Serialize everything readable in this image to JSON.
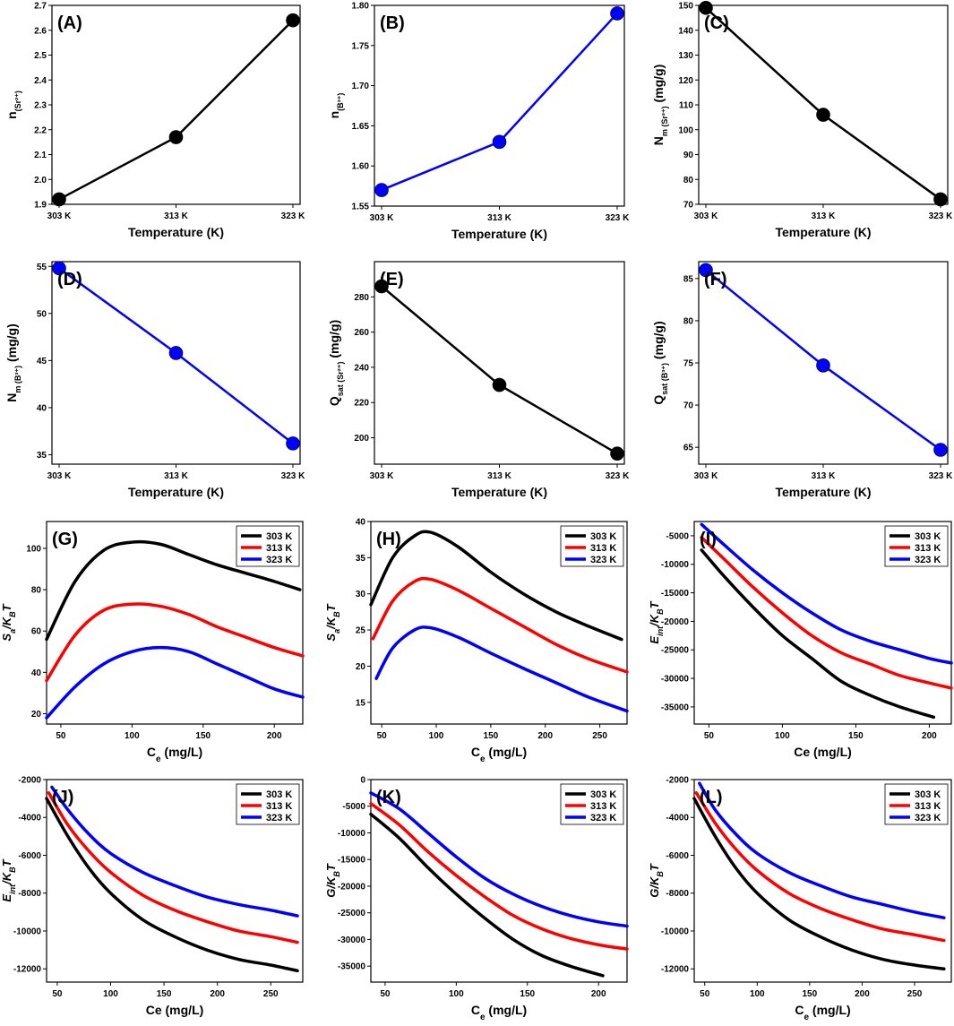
{
  "chart_data": [
    {
      "id": "A",
      "panel_label": "(A)",
      "type": "line",
      "categories": [
        "303 K",
        "313 K",
        "323 K"
      ],
      "series": [
        {
          "name": "n(Sr2+)",
          "values": [
            1.92,
            2.17,
            2.64
          ]
        }
      ],
      "xlabel": "Temperature (K)",
      "ylabel_main": "n",
      "ylabel_sub": "(Sr²⁺)",
      "ylabel_sub2": "",
      "ylim": [
        1.9,
        2.7
      ],
      "yticks": [
        1.9,
        2.0,
        2.1,
        2.2,
        2.3,
        2.4,
        2.5,
        2.6,
        2.7
      ],
      "ytick_labels": [
        "1.9",
        "2.0",
        "2.1",
        "2.2",
        "2.3",
        "2.4",
        "2.5",
        "2.6",
        "2.7"
      ]
    },
    {
      "id": "B",
      "panel_label": "(B)",
      "type": "line",
      "categories": [
        "303 K",
        "313 K",
        "323 K"
      ],
      "series": [
        {
          "name": "n(B3+)",
          "values": [
            1.57,
            1.63,
            1.79
          ]
        }
      ],
      "xlabel": "Temperature (K)",
      "ylabel_main": "n",
      "ylabel_sub": "(B³⁺)",
      "ylabel_sub2": "",
      "ylim": [
        1.55,
        1.8
      ],
      "yticks": [
        1.55,
        1.6,
        1.65,
        1.7,
        1.75,
        1.8
      ],
      "ytick_labels": [
        "1.55",
        "1.60",
        "1.65",
        "1.70",
        "1.75",
        "1.80"
      ]
    },
    {
      "id": "C",
      "panel_label": "(C)",
      "type": "line",
      "categories": [
        "303 K",
        "313 K",
        "323 K"
      ],
      "series": [
        {
          "name": "Nm(Sr2+)",
          "values": [
            149,
            106,
            72
          ]
        }
      ],
      "xlabel": "Temperature (K)",
      "ylabel_main": "N",
      "ylabel_sub": "m (Sr²⁺)",
      "ylabel_sub2": " (mg/g)",
      "ylim": [
        70,
        150
      ],
      "yticks": [
        70,
        80,
        90,
        100,
        110,
        120,
        130,
        140,
        150
      ],
      "ytick_labels": [
        "70",
        "80",
        "90",
        "100",
        "110",
        "120",
        "130",
        "140",
        "150"
      ]
    },
    {
      "id": "D",
      "panel_label": "(D)",
      "type": "line",
      "categories": [
        "303 K",
        "313 K",
        "323 K"
      ],
      "series": [
        {
          "name": "Nm(B3+)",
          "values": [
            54.8,
            45.8,
            36.2
          ]
        }
      ],
      "xlabel": "Temperature (K)",
      "ylabel_main": "N",
      "ylabel_sub": "m (B³⁺)",
      "ylabel_sub2": " (mg/g)",
      "ylim": [
        34,
        55.5
      ],
      "yticks": [
        35,
        40,
        45,
        50,
        55
      ],
      "ytick_labels": [
        "35",
        "40",
        "45",
        "50",
        "55"
      ]
    },
    {
      "id": "E",
      "panel_label": "(E)",
      "type": "line",
      "categories": [
        "303 K",
        "313 K",
        "323 K"
      ],
      "series": [
        {
          "name": "Qsat(Sr2+)",
          "values": [
            286,
            230,
            191
          ]
        }
      ],
      "xlabel": "Temperature (K)",
      "ylabel_main": "Q",
      "ylabel_sub": "sat (Sr²⁺)",
      "ylabel_sub2": " (mg/g)",
      "ylim": [
        185,
        300
      ],
      "yticks": [
        200,
        220,
        240,
        260,
        280
      ],
      "ytick_labels": [
        "200",
        "220",
        "240",
        "260",
        "280"
      ]
    },
    {
      "id": "F",
      "panel_label": "(F)",
      "type": "line",
      "categories": [
        "303 K",
        "313 K",
        "323 K"
      ],
      "series": [
        {
          "name": "Qsat(B3+)",
          "values": [
            86,
            74.7,
            64.7
          ]
        }
      ],
      "xlabel": "Temperature (K)",
      "ylabel_main": "Q",
      "ylabel_sub": "sat (B³⁺)",
      "ylabel_sub2": " (mg/g)",
      "ylim": [
        63,
        87
      ],
      "yticks": [
        65,
        70,
        75,
        80,
        85
      ],
      "ytick_labels": [
        "65",
        "70",
        "75",
        "80",
        "85"
      ]
    },
    {
      "id": "G",
      "panel_label": "(G)",
      "type": "line",
      "xlabel": "Ce (mg/L)",
      "xlabel_main": "C",
      "xlabel_sub": "e",
      "xlabel_rest": " (mg/L)",
      "ylabel_main": "S",
      "ylabel_sub": "a",
      "ylabel_mid": "/K",
      "ylabel_sub2": "B",
      "ylabel_end": "T",
      "xlim": [
        40,
        220
      ],
      "xticks": [
        50,
        100,
        150,
        200
      ],
      "xtick_labels": [
        "50",
        "100",
        "150",
        "200"
      ],
      "ylim": [
        15,
        113
      ],
      "yticks": [
        20,
        40,
        60,
        80,
        100
      ],
      "ytick_labels": [
        "20",
        "40",
        "60",
        "80",
        "100"
      ],
      "series": [
        {
          "name": "303 K",
          "x": [
            40,
            60,
            80,
            100,
            120,
            140,
            160,
            180,
            200,
            218
          ],
          "values": [
            56,
            84,
            99,
            103,
            102,
            97,
            92,
            88,
            84,
            80
          ]
        },
        {
          "name": "313 K",
          "x": [
            40,
            60,
            80,
            100,
            120,
            140,
            160,
            180,
            200,
            220
          ],
          "values": [
            36,
            58,
            70,
            73,
            72,
            68,
            62,
            57,
            52,
            48
          ]
        },
        {
          "name": "323 K",
          "x": [
            40,
            60,
            80,
            100,
            120,
            140,
            160,
            180,
            200,
            220
          ],
          "values": [
            18,
            33,
            44,
            50,
            52,
            50,
            44,
            38,
            32,
            28
          ]
        }
      ]
    },
    {
      "id": "H",
      "panel_label": "(H)",
      "type": "line",
      "xlabel": "Ce (mg/L)",
      "xlabel_main": "C",
      "xlabel_sub": "e",
      "xlabel_rest": " (mg/L)",
      "ylabel_main": "S",
      "ylabel_sub": "a",
      "ylabel_mid": "/K",
      "ylabel_sub2": "B",
      "ylabel_end": "T",
      "xlim": [
        40,
        275
      ],
      "xticks": [
        50,
        100,
        150,
        200,
        250
      ],
      "xtick_labels": [
        "50",
        "100",
        "150",
        "200",
        "250"
      ],
      "ylim": [
        12,
        40
      ],
      "yticks": [
        15,
        20,
        25,
        30,
        35,
        40
      ],
      "ytick_labels": [
        "15",
        "20",
        "25",
        "30",
        "35",
        "40"
      ],
      "series": [
        {
          "name": "303 K",
          "x": [
            40,
            60,
            80,
            95,
            120,
            150,
            180,
            210,
            240,
            270
          ],
          "values": [
            28.5,
            35,
            38,
            38.5,
            36.5,
            33,
            30,
            27.5,
            25.5,
            23.7
          ]
        },
        {
          "name": "313 K",
          "x": [
            42,
            60,
            80,
            95,
            120,
            150,
            180,
            210,
            240,
            275
          ],
          "values": [
            23.8,
            29,
            31.7,
            32,
            30.5,
            28,
            25.5,
            23,
            21,
            19.2
          ]
        },
        {
          "name": "323 K",
          "x": [
            45,
            60,
            80,
            95,
            120,
            150,
            180,
            210,
            240,
            275
          ],
          "values": [
            18.3,
            22.5,
            25,
            25.3,
            24,
            21.8,
            19.7,
            17.7,
            15.7,
            13.8
          ]
        }
      ]
    },
    {
      "id": "I",
      "panel_label": "(I)",
      "type": "line",
      "xlabel": "Ce (mg/L)",
      "xlabel_main": "Ce",
      "xlabel_sub": "",
      "xlabel_rest": " (mg/L)",
      "ylabel_main": "E",
      "ylabel_sub": "int",
      "ylabel_mid": "/K",
      "ylabel_sub2": "B",
      "ylabel_end": "T",
      "xlim": [
        40,
        215
      ],
      "xticks": [
        50,
        100,
        150,
        200
      ],
      "xtick_labels": [
        "50",
        "100",
        "150",
        "200"
      ],
      "ylim": [
        -38000,
        -2500
      ],
      "yticks": [
        -35000,
        -30000,
        -25000,
        -20000,
        -15000,
        -10000,
        -5000
      ],
      "ytick_labels": [
        "-35000",
        "-30000",
        "-25000",
        "-20000",
        "-15000",
        "-10000",
        "-5000"
      ],
      "series": [
        {
          "name": "303 K",
          "x": [
            45,
            60,
            80,
            100,
            120,
            140,
            160,
            180,
            203
          ],
          "values": [
            -7500,
            -12000,
            -17500,
            -22500,
            -26500,
            -30500,
            -33000,
            -35000,
            -36800
          ]
        },
        {
          "name": "313 K",
          "x": [
            45,
            60,
            80,
            100,
            120,
            140,
            160,
            180,
            200,
            215
          ],
          "values": [
            -5300,
            -9000,
            -14000,
            -18500,
            -22500,
            -25500,
            -27500,
            -29500,
            -30800,
            -31700
          ]
        },
        {
          "name": "323 K",
          "x": [
            45,
            60,
            80,
            100,
            120,
            140,
            160,
            180,
            200,
            215
          ],
          "values": [
            -3000,
            -6500,
            -11000,
            -15000,
            -18500,
            -21500,
            -23500,
            -25000,
            -26500,
            -27300
          ]
        }
      ]
    },
    {
      "id": "J",
      "panel_label": "(J)",
      "type": "line",
      "xlabel": "Ce (mg/L)",
      "xlabel_main": "Ce",
      "xlabel_sub": "",
      "xlabel_rest": " (mg/L)",
      "ylabel_main": "E",
      "ylabel_sub": "int",
      "ylabel_mid": "/K",
      "ylabel_sub2": "B",
      "ylabel_end": "T",
      "xlim": [
        40,
        280
      ],
      "xticks": [
        50,
        100,
        150,
        200,
        250
      ],
      "xtick_labels": [
        "50",
        "100",
        "150",
        "200",
        "250"
      ],
      "ylim": [
        -12700,
        -2000
      ],
      "yticks": [
        -12000,
        -10000,
        -8000,
        -6000,
        -4000,
        -2000
      ],
      "ytick_labels": [
        "-12000",
        "-10000",
        "-8000",
        "-6000",
        "-4000",
        "-2000"
      ],
      "series": [
        {
          "name": "303 K",
          "x": [
            40,
            60,
            80,
            100,
            130,
            160,
            190,
            220,
            250,
            275
          ],
          "values": [
            -3000,
            -5000,
            -6700,
            -8000,
            -9400,
            -10300,
            -11000,
            -11500,
            -11800,
            -12100
          ]
        },
        {
          "name": "313 K",
          "x": [
            42,
            60,
            80,
            100,
            130,
            160,
            190,
            220,
            250,
            275
          ],
          "values": [
            -2700,
            -4400,
            -5800,
            -6900,
            -8100,
            -8900,
            -9500,
            -10000,
            -10300,
            -10600
          ]
        },
        {
          "name": "323 K",
          "x": [
            45,
            60,
            80,
            100,
            130,
            160,
            190,
            220,
            250,
            275
          ],
          "values": [
            -2400,
            -3600,
            -4900,
            -5900,
            -6900,
            -7600,
            -8200,
            -8600,
            -8900,
            -9200
          ]
        }
      ]
    },
    {
      "id": "K",
      "panel_label": "(K)",
      "type": "line",
      "xlabel": "Ce (mg/L)",
      "xlabel_main": "C",
      "xlabel_sub": "e",
      "xlabel_rest": " (mg/L)",
      "ylabel_main": "G",
      "ylabel_sub": "",
      "ylabel_mid": "/K",
      "ylabel_sub2": "B",
      "ylabel_end": "T",
      "xlim": [
        40,
        220
      ],
      "xticks": [
        50,
        100,
        150,
        200
      ],
      "xtick_labels": [
        "50",
        "100",
        "150",
        "200"
      ],
      "ylim": [
        -38000,
        0
      ],
      "yticks": [
        -35000,
        -30000,
        -25000,
        -20000,
        -15000,
        -10000,
        -5000,
        0
      ],
      "ytick_labels": [
        "-35000",
        "-30000",
        "-25000",
        "-20000",
        "-15000",
        "-10000",
        "-5000",
        "0"
      ],
      "series": [
        {
          "name": "303 K",
          "x": [
            40,
            60,
            80,
            100,
            120,
            140,
            160,
            180,
            203
          ],
          "values": [
            -6500,
            -11000,
            -16500,
            -21500,
            -26000,
            -30000,
            -33000,
            -35000,
            -36800
          ]
        },
        {
          "name": "313 K",
          "x": [
            40,
            60,
            80,
            100,
            120,
            140,
            160,
            180,
            200,
            220
          ],
          "values": [
            -4500,
            -8500,
            -13500,
            -18000,
            -22000,
            -25500,
            -28000,
            -29800,
            -31000,
            -31800
          ]
        },
        {
          "name": "323 K",
          "x": [
            40,
            60,
            80,
            100,
            120,
            140,
            160,
            180,
            200,
            220
          ],
          "values": [
            -2500,
            -5500,
            -10000,
            -14500,
            -18500,
            -21500,
            -23800,
            -25500,
            -26700,
            -27500
          ]
        }
      ]
    },
    {
      "id": "L",
      "panel_label": "(L)",
      "type": "line",
      "xlabel": "Ce (mg/L)",
      "xlabel_main": "C",
      "xlabel_sub": "e",
      "xlabel_rest": " (mg/L)",
      "ylabel_main": "G",
      "ylabel_sub": "",
      "ylabel_mid": "/K",
      "ylabel_sub2": "B",
      "ylabel_end": "T",
      "xlim": [
        40,
        285
      ],
      "xticks": [
        50,
        100,
        150,
        200,
        250
      ],
      "xtick_labels": [
        "50",
        "100",
        "150",
        "200",
        "250"
      ],
      "ylim": [
        -12700,
        -2000
      ],
      "yticks": [
        -12000,
        -10000,
        -8000,
        -6000,
        -4000,
        -2000
      ],
      "ytick_labels": [
        "-12000",
        "-10000",
        "-8000",
        "-6000",
        "-4000",
        "-2000"
      ],
      "series": [
        {
          "name": "303 K",
          "x": [
            40,
            60,
            80,
            100,
            130,
            160,
            190,
            220,
            250,
            278
          ],
          "values": [
            -3000,
            -5000,
            -6700,
            -8000,
            -9400,
            -10300,
            -11000,
            -11500,
            -11800,
            -12000
          ]
        },
        {
          "name": "313 K",
          "x": [
            42,
            60,
            80,
            100,
            130,
            160,
            190,
            220,
            250,
            278
          ],
          "values": [
            -2700,
            -4300,
            -5700,
            -6800,
            -8000,
            -8800,
            -9400,
            -9900,
            -10200,
            -10500
          ]
        },
        {
          "name": "323 K",
          "x": [
            45,
            60,
            80,
            100,
            130,
            160,
            190,
            220,
            250,
            278
          ],
          "values": [
            -2200,
            -3600,
            -4900,
            -5900,
            -6900,
            -7600,
            -8200,
            -8600,
            -9000,
            -9300
          ]
        }
      ]
    }
  ],
  "legend_labels": [
    "303 K",
    "313 K",
    "323 K"
  ],
  "colors": {
    "black": "#000000",
    "red": "#ff0000",
    "blue": "#0000ff",
    "marker_black": "#000000",
    "marker_blue": "#0000ff"
  }
}
